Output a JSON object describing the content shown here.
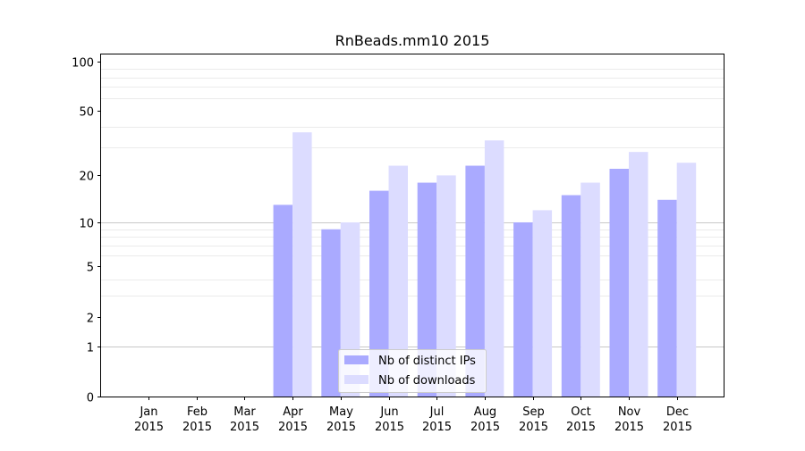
{
  "chart_data": {
    "type": "bar",
    "title": "RnBeads.mm10 2015",
    "xlabel": "",
    "ylabel": "",
    "yscale": "log1p",
    "ylim": [
      0,
      110
    ],
    "yticks": [
      {
        "value": 0,
        "label": "0"
      },
      {
        "value": 1,
        "label": "1"
      },
      {
        "value": 2,
        "label": "2"
      },
      {
        "value": 5,
        "label": "5"
      },
      {
        "value": 10,
        "label": "10"
      },
      {
        "value": 20,
        "label": "20"
      },
      {
        "value": 50,
        "label": "50"
      },
      {
        "value": 100,
        "label": "100"
      }
    ],
    "major_gridlines": [
      1,
      10
    ],
    "minor_gridlines": [
      3,
      4,
      6,
      7,
      8,
      9,
      30,
      40,
      60,
      70,
      80,
      90
    ],
    "categories": [
      [
        "Jan",
        "2015"
      ],
      [
        "Feb",
        "2015"
      ],
      [
        "Mar",
        "2015"
      ],
      [
        "Apr",
        "2015"
      ],
      [
        "May",
        "2015"
      ],
      [
        "Jun",
        "2015"
      ],
      [
        "Jul",
        "2015"
      ],
      [
        "Aug",
        "2015"
      ],
      [
        "Sep",
        "2015"
      ],
      [
        "Oct",
        "2015"
      ],
      [
        "Nov",
        "2015"
      ],
      [
        "Dec",
        "2015"
      ]
    ],
    "series": [
      {
        "name": "Nb of distinct IPs",
        "color": "#aaaaff",
        "values": [
          0,
          0,
          0,
          13,
          9,
          16,
          18,
          23,
          10,
          15,
          22,
          14
        ]
      },
      {
        "name": "Nb of downloads",
        "color": "#dcdcff",
        "values": [
          0,
          0,
          0,
          37,
          10,
          23,
          20,
          33,
          12,
          18,
          28,
          24
        ]
      }
    ],
    "legend": "lower-center",
    "grid": true
  }
}
